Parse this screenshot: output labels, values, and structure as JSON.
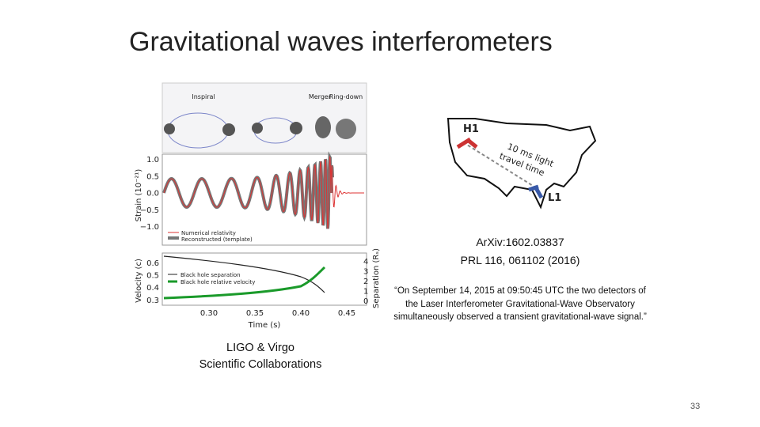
{
  "title": "Gravitational waves interferometers",
  "figure": {
    "phases": [
      "Inspiral",
      "Merger",
      "Ring-down"
    ],
    "strain_axis": {
      "label": "Strain (10⁻²¹)",
      "ticks": [
        "1.0",
        "0.5",
        "0.0",
        "−0.5",
        "−1.0"
      ]
    },
    "legend_top": [
      "Numerical relativity",
      "Reconstructed (template)"
    ],
    "velocity_axis": {
      "label": "Velocity (c)",
      "ticks": [
        "0.6",
        "0.5",
        "0.4",
        "0.3"
      ]
    },
    "separation_axis": {
      "label": "Separation (Rₛ)",
      "ticks": [
        "4",
        "3",
        "2",
        "1",
        "0"
      ]
    },
    "legend_bottom": [
      "Black hole separation",
      "Black hole relative velocity"
    ],
    "time_axis": {
      "label": "Time (s)",
      "ticks": [
        "0.30",
        "0.35",
        "0.40",
        "0.45"
      ]
    }
  },
  "credit": [
    "LIGO & Virgo",
    "Scientific Collaborations"
  ],
  "map": {
    "labels": [
      "H1",
      "L1"
    ],
    "note": [
      "10 ms light",
      "travel time"
    ]
  },
  "refs": [
    "ArXiv:1602.03837",
    "PRL 116, 061102 (2016)"
  ],
  "quote": "“On September 14, 2015 at 09:50:45 UTC the two detectors of the Laser Interferometer Gravitational-Wave Observatory simultaneously observed a transient gravitational-wave signal.”",
  "page_number": "33"
}
